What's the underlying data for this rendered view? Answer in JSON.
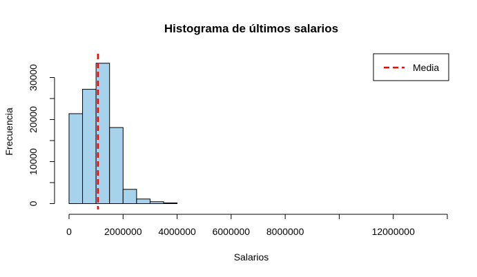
{
  "chart_data": {
    "type": "bar",
    "title": "Histograma de últimos salarios",
    "xlabel": "Salarios",
    "ylabel": "Frecuencia",
    "xlim": [
      0,
      14000000
    ],
    "ylim": [
      0,
      35000
    ],
    "bin_width": 500000,
    "bins": [
      {
        "start": 0,
        "end": 500000,
        "count": 21400
      },
      {
        "start": 500000,
        "end": 1000000,
        "count": 27200
      },
      {
        "start": 1000000,
        "end": 1500000,
        "count": 33400
      },
      {
        "start": 1500000,
        "end": 2000000,
        "count": 18100
      },
      {
        "start": 2000000,
        "end": 2500000,
        "count": 3400
      },
      {
        "start": 2500000,
        "end": 3000000,
        "count": 1100
      },
      {
        "start": 3000000,
        "end": 3500000,
        "count": 450
      },
      {
        "start": 3500000,
        "end": 4000000,
        "count": 180
      },
      {
        "start": 4000000,
        "end": 13500000,
        "count": 0
      }
    ],
    "bar_fill": "#a6d2ec",
    "mean_line": {
      "name": "Media",
      "value": 1070000,
      "color": "#ff0000"
    },
    "x_axis": {
      "ticks": [
        0,
        2000000,
        4000000,
        6000000,
        8000000,
        10000000,
        12000000,
        14000000
      ],
      "labels": [
        "0",
        "2000000",
        "4000000",
        "6000000",
        "8000000",
        "",
        "12000000",
        ""
      ]
    },
    "y_axis": {
      "ticks": [
        0,
        5000,
        10000,
        15000,
        20000,
        25000,
        30000
      ],
      "labels": [
        "0",
        "",
        "10000",
        "",
        "20000",
        "",
        "30000"
      ]
    },
    "legend": {
      "position": "top-right",
      "entries": [
        "Media"
      ]
    }
  }
}
